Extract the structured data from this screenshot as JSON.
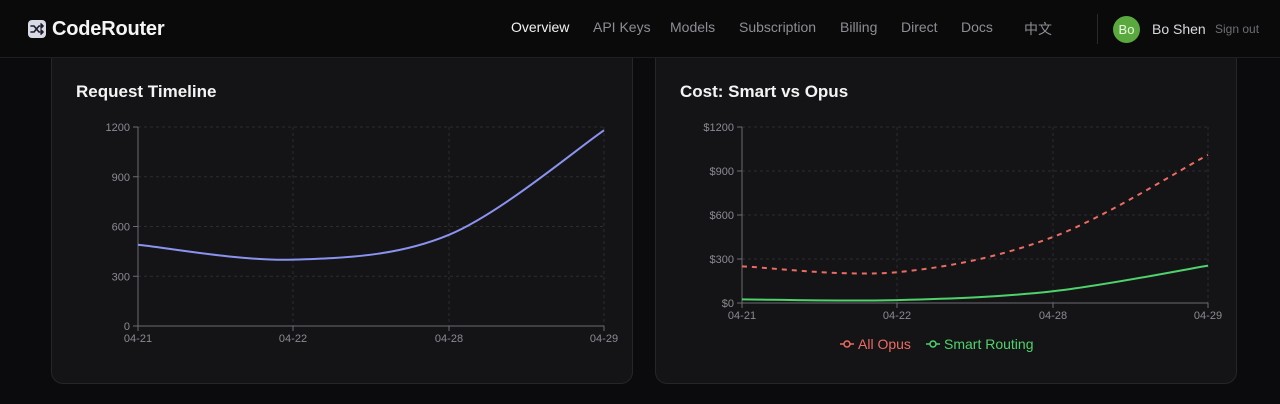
{
  "app": {
    "brand": "CodeRouter",
    "brand_icon": "shuffle-icon"
  },
  "nav": {
    "items": [
      {
        "label": "Overview",
        "active": true
      },
      {
        "label": "API Keys",
        "active": false
      },
      {
        "label": "Models",
        "active": false
      },
      {
        "label": "Subscription",
        "active": false
      },
      {
        "label": "Billing",
        "active": false
      },
      {
        "label": "Direct",
        "active": false
      },
      {
        "label": "Docs",
        "active": false
      },
      {
        "label": "中文",
        "active": false
      }
    ]
  },
  "user": {
    "initials": "Bo",
    "name": "Bo Shen",
    "sign_out": "Sign out",
    "avatar_color": "#5aa93f"
  },
  "chart_data": [
    {
      "type": "line",
      "title": "Request Timeline",
      "categories": [
        "04-21",
        "04-22",
        "04-28",
        "04-29"
      ],
      "ylim": [
        0,
        1200
      ],
      "yticks": [
        "0",
        "300",
        "600",
        "900",
        "1200"
      ],
      "grid": true,
      "series": [
        {
          "values": [
            490,
            400,
            550,
            1180
          ],
          "color": "#8b93f0"
        }
      ]
    },
    {
      "type": "line",
      "title": "Cost: Smart vs Opus",
      "categories": [
        "04-21",
        "04-22",
        "04-28",
        "04-29"
      ],
      "ylim": [
        0,
        1200
      ],
      "yticks": [
        "$0",
        "$300",
        "$600",
        "$900",
        "$1200"
      ],
      "grid": true,
      "legend": "bottom",
      "series": [
        {
          "name": "All Opus",
          "values": [
            250,
            210,
            450,
            1010
          ],
          "color": "#ec6b63",
          "dashed": true
        },
        {
          "name": "Smart Routing",
          "values": [
            25,
            20,
            80,
            255
          ],
          "color": "#4fd26b",
          "dashed": false
        }
      ]
    }
  ]
}
